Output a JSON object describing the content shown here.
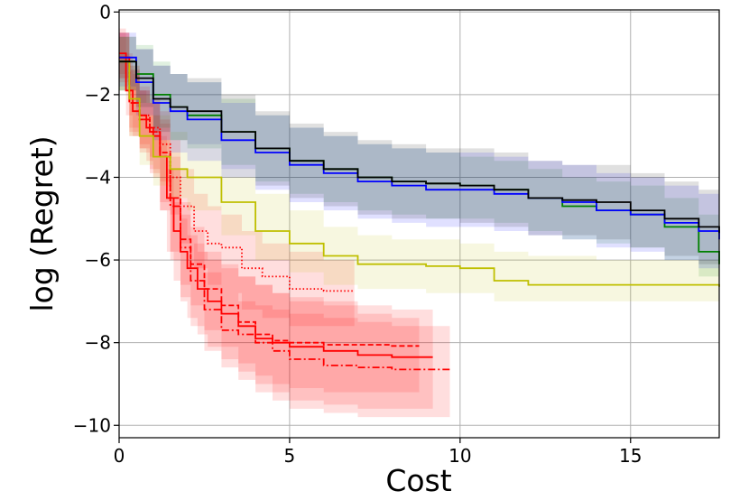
{
  "chart_data": {
    "type": "line",
    "title": "",
    "xlabel": "Cost",
    "ylabel": "log (Regret)",
    "xlim": [
      0,
      17.6
    ],
    "ylim": [
      -10.3,
      0.05
    ],
    "xticks": [
      0,
      5,
      10,
      15
    ],
    "xtick_labels": [
      "0",
      "5",
      "10",
      "15"
    ],
    "yticks": [
      0,
      -2,
      -4,
      -6,
      -8,
      -10
    ],
    "ytick_labels": [
      "0",
      "−2",
      "−4",
      "−6",
      "−8",
      "−10"
    ],
    "grid": true,
    "legend": "none",
    "series": [
      {
        "name": "red-solid",
        "color": "#ff0000",
        "style": "solid",
        "x": [
          0,
          0.2,
          0.4,
          0.6,
          0.8,
          1.0,
          1.2,
          1.4,
          1.6,
          1.8,
          2.0,
          2.3,
          2.6,
          3.0,
          3.5,
          4.0,
          4.5,
          5.0,
          6.0,
          7.0,
          8.0,
          9.2
        ],
        "y": [
          -1.0,
          -1.9,
          -2.4,
          -2.5,
          -2.8,
          -3.0,
          -3.5,
          -4.5,
          -5.3,
          -5.8,
          -6.2,
          -6.7,
          -7.0,
          -7.3,
          -7.6,
          -7.9,
          -8.0,
          -8.1,
          -8.2,
          -8.3,
          -8.35,
          -8.35
        ],
        "band_upper": [
          -0.4,
          -1.0,
          -1.5,
          -1.9,
          -2.2,
          -2.5,
          -3.0,
          -3.8,
          -4.6,
          -5.0,
          -5.4,
          -5.8,
          -6.0,
          -6.2,
          -6.4,
          -6.6,
          -6.8,
          -6.9,
          -7.0,
          -7.1,
          -7.2,
          -7.3
        ],
        "band_lower": [
          -1.5,
          -2.5,
          -3.0,
          -3.3,
          -3.6,
          -4.0,
          -4.8,
          -5.8,
          -6.5,
          -7.0,
          -7.4,
          -7.8,
          -8.1,
          -8.4,
          -8.7,
          -9.0,
          -9.2,
          -9.4,
          -9.5,
          -9.6,
          -9.6,
          -9.6
        ]
      },
      {
        "name": "red-dashed",
        "color": "#ff0000",
        "style": "dashed",
        "x": [
          0,
          0.3,
          0.6,
          0.9,
          1.2,
          1.5,
          1.8,
          2.1,
          2.5,
          3.0,
          3.5,
          4.0,
          4.5,
          5.0,
          6.0,
          7.0,
          8.0,
          8.8
        ],
        "y": [
          -1.1,
          -2.2,
          -2.6,
          -2.9,
          -3.4,
          -4.5,
          -5.5,
          -6.1,
          -6.7,
          -7.1,
          -7.5,
          -7.8,
          -7.95,
          -8.0,
          -8.05,
          -8.05,
          -8.08,
          -8.08
        ],
        "band_upper": [
          -0.5,
          -1.4,
          -1.9,
          -2.2,
          -2.6,
          -3.5,
          -4.6,
          -5.2,
          -5.8,
          -6.1,
          -6.4,
          -6.6,
          -6.8,
          -7.0,
          -7.1,
          -7.3,
          -7.4,
          -7.5
        ],
        "band_lower": [
          -1.6,
          -2.9,
          -3.3,
          -3.8,
          -4.6,
          -5.8,
          -6.6,
          -7.1,
          -7.7,
          -8.1,
          -8.5,
          -8.8,
          -9.0,
          -9.1,
          -9.2,
          -9.2,
          -9.2,
          -9.2
        ]
      },
      {
        "name": "red-dashdot",
        "color": "#ff0000",
        "style": "dashdot",
        "x": [
          0,
          0.3,
          0.6,
          0.9,
          1.2,
          1.5,
          1.8,
          2.1,
          2.5,
          3.0,
          3.5,
          4.0,
          4.5,
          5.0,
          6.0,
          7.0,
          8.0,
          9.7
        ],
        "y": [
          -1.1,
          -2.2,
          -2.6,
          -2.9,
          -3.5,
          -4.7,
          -5.7,
          -6.5,
          -7.2,
          -7.7,
          -7.8,
          -8.0,
          -8.2,
          -8.4,
          -8.55,
          -8.6,
          -8.65,
          -8.65
        ],
        "band_upper": [
          -0.5,
          -1.4,
          -1.9,
          -2.2,
          -2.7,
          -3.8,
          -4.9,
          -5.6,
          -6.3,
          -6.8,
          -7.0,
          -7.1,
          -7.2,
          -7.3,
          -7.4,
          -7.5,
          -7.6,
          -7.7
        ],
        "band_lower": [
          -1.7,
          -3.0,
          -3.4,
          -3.9,
          -4.8,
          -6.0,
          -6.9,
          -7.6,
          -8.2,
          -8.6,
          -8.9,
          -9.2,
          -9.4,
          -9.6,
          -9.7,
          -9.8,
          -9.8,
          -9.8
        ]
      },
      {
        "name": "red-dotted",
        "color": "#ff0000",
        "style": "dotted",
        "x": [
          0,
          0.3,
          0.6,
          0.9,
          1.2,
          1.5,
          1.8,
          2.2,
          2.6,
          3.0,
          3.6,
          4.2,
          5.0,
          6.0,
          6.9
        ],
        "y": [
          -1.1,
          -2.1,
          -2.5,
          -2.8,
          -3.2,
          -4.0,
          -4.7,
          -5.3,
          -5.6,
          -5.7,
          -6.2,
          -6.4,
          -6.7,
          -6.75,
          -6.75
        ],
        "band_upper": [
          -0.5,
          -1.3,
          -1.8,
          -2.1,
          -2.4,
          -3.1,
          -3.8,
          -4.4,
          -4.7,
          -4.9,
          -5.3,
          -5.6,
          -5.8,
          -6.0,
          -6.1
        ],
        "band_lower": [
          -1.6,
          -2.8,
          -3.2,
          -3.5,
          -4.1,
          -4.9,
          -5.6,
          -6.2,
          -6.6,
          -6.8,
          -7.2,
          -7.4,
          -7.6,
          -7.6,
          -7.7
        ]
      },
      {
        "name": "yellow",
        "color": "#bfbf00",
        "style": "solid",
        "x": [
          0,
          0.3,
          0.6,
          1.0,
          1.5,
          2.0,
          3.0,
          4.0,
          5.0,
          6.0,
          7.0,
          8.0,
          9.0,
          10.0,
          11.0,
          12.0,
          14.0,
          16.0,
          17.6
        ],
        "y": [
          -1.2,
          -2.1,
          -3.0,
          -3.5,
          -3.8,
          -4.0,
          -4.6,
          -5.3,
          -5.6,
          -5.9,
          -6.1,
          -6.1,
          -6.15,
          -6.2,
          -6.5,
          -6.6,
          -6.6,
          -6.6,
          -6.65
        ],
        "band_upper": [
          -0.6,
          -1.3,
          -2.0,
          -2.5,
          -2.9,
          -3.2,
          -3.8,
          -4.4,
          -4.8,
          -5.2,
          -5.4,
          -5.5,
          -5.5,
          -5.6,
          -5.8,
          -5.9,
          -6.0,
          -6.0,
          -6.1
        ],
        "band_lower": [
          -1.9,
          -3.0,
          -3.7,
          -4.2,
          -4.5,
          -4.8,
          -5.4,
          -6.0,
          -6.3,
          -6.6,
          -6.7,
          -6.7,
          -6.8,
          -6.8,
          -7.0,
          -7.0,
          -7.0,
          -7.0,
          -7.0
        ]
      },
      {
        "name": "green",
        "color": "#008000",
        "style": "solid",
        "x": [
          0,
          0.5,
          1.0,
          1.5,
          2.0,
          3.0,
          4.0,
          5.0,
          6.0,
          7.0,
          8.0,
          9.0,
          10.0,
          11.0,
          12.0,
          13.0,
          14.0,
          15.0,
          16.0,
          17.0,
          17.6
        ],
        "y": [
          -1.2,
          -1.5,
          -2.0,
          -2.3,
          -2.5,
          -2.9,
          -3.3,
          -3.6,
          -3.8,
          -4.0,
          -4.1,
          -4.15,
          -4.2,
          -4.3,
          -4.5,
          -4.7,
          -4.8,
          -4.9,
          -5.2,
          -5.8,
          -6.1
        ],
        "band_upper": [
          -0.6,
          -0.8,
          -1.2,
          -1.5,
          -1.7,
          -2.1,
          -2.5,
          -2.8,
          -3.0,
          -3.2,
          -3.3,
          -3.4,
          -3.5,
          -3.6,
          -3.8,
          -4.0,
          -4.1,
          -4.2,
          -4.5,
          -4.9,
          -5.0
        ],
        "band_lower": [
          -1.9,
          -2.2,
          -2.8,
          -3.1,
          -3.3,
          -3.7,
          -4.1,
          -4.4,
          -4.6,
          -4.8,
          -4.9,
          -5.0,
          -5.0,
          -5.1,
          -5.3,
          -5.5,
          -5.6,
          -5.7,
          -6.0,
          -6.4,
          -6.5
        ]
      },
      {
        "name": "blue",
        "color": "#0000ff",
        "style": "solid",
        "x": [
          0,
          0.5,
          1.0,
          1.5,
          2.0,
          3.0,
          4.0,
          5.0,
          6.0,
          7.0,
          8.0,
          9.0,
          10.0,
          11.0,
          12.0,
          13.0,
          14.0,
          15.0,
          16.0,
          17.0,
          17.6
        ],
        "y": [
          -1.1,
          -1.7,
          -2.2,
          -2.4,
          -2.6,
          -3.1,
          -3.4,
          -3.7,
          -3.9,
          -4.1,
          -4.2,
          -4.3,
          -4.3,
          -4.4,
          -4.5,
          -4.6,
          -4.8,
          -4.9,
          -5.1,
          -5.3,
          -5.5
        ],
        "band_upper": [
          -0.5,
          -0.9,
          -1.3,
          -1.5,
          -1.7,
          -2.2,
          -2.5,
          -2.8,
          -3.0,
          -3.2,
          -3.3,
          -3.4,
          -3.4,
          -3.5,
          -3.6,
          -3.7,
          -3.9,
          -4.0,
          -4.2,
          -4.4,
          -4.6
        ],
        "band_lower": [
          -1.8,
          -2.5,
          -3.1,
          -3.4,
          -3.6,
          -4.0,
          -4.3,
          -4.6,
          -4.8,
          -5.0,
          -5.1,
          -5.2,
          -5.2,
          -5.3,
          -5.4,
          -5.5,
          -5.7,
          -5.8,
          -6.0,
          -6.2,
          -6.4
        ]
      },
      {
        "name": "black",
        "color": "#000000",
        "style": "solid",
        "x": [
          0,
          0.5,
          1.0,
          1.5,
          2.0,
          3.0,
          4.0,
          5.0,
          6.0,
          7.0,
          8.0,
          9.0,
          10.0,
          11.0,
          12.0,
          13.0,
          14.0,
          15.0,
          16.0,
          17.0,
          17.6
        ],
        "y": [
          -1.2,
          -1.6,
          -2.1,
          -2.3,
          -2.4,
          -2.9,
          -3.3,
          -3.6,
          -3.8,
          -4.0,
          -4.1,
          -4.15,
          -4.2,
          -4.3,
          -4.5,
          -4.55,
          -4.6,
          -4.8,
          -5.0,
          -5.2,
          -5.35
        ],
        "band_upper": [
          -0.6,
          -0.9,
          -1.3,
          -1.5,
          -1.6,
          -2.0,
          -2.4,
          -2.7,
          -2.9,
          -3.1,
          -3.2,
          -3.3,
          -3.3,
          -3.4,
          -3.6,
          -3.7,
          -3.7,
          -3.9,
          -4.1,
          -4.3,
          -4.5
        ],
        "band_lower": [
          -1.9,
          -2.3,
          -2.9,
          -3.1,
          -3.2,
          -3.8,
          -4.2,
          -4.5,
          -4.7,
          -4.9,
          -5.0,
          -5.0,
          -5.1,
          -5.2,
          -5.4,
          -5.4,
          -5.5,
          -5.7,
          -5.9,
          -6.1,
          -6.2
        ]
      }
    ]
  }
}
